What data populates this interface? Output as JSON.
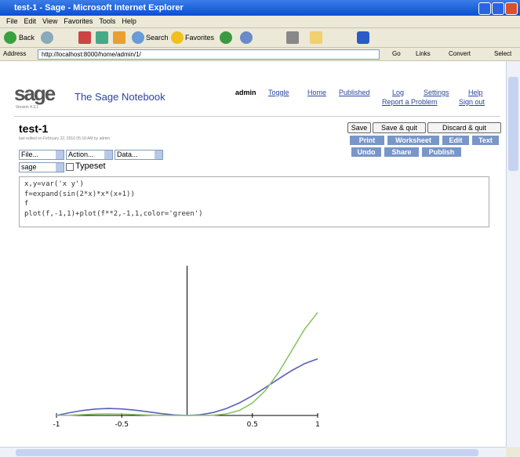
{
  "window": {
    "title": "test-1 - Sage - Microsoft Internet Explorer",
    "menu": [
      "File",
      "Edit",
      "View",
      "Favorites",
      "Tools",
      "Help"
    ],
    "toolbar": [
      "Back",
      "Search",
      "Favorites"
    ],
    "address_label": "Address",
    "address": "http://localhost:8000/home/admin/1/",
    "go": "Go",
    "links": "Links",
    "convert": "Convert",
    "select": "Select"
  },
  "header": {
    "logo": "sage",
    "version": "Version 4.3.1",
    "title": "The Sage Notebook",
    "user": "admin",
    "links": [
      "Toggle",
      "Home",
      "Published",
      "Log",
      "Settings",
      "Help",
      "Report a Problem",
      "Sign out"
    ]
  },
  "worksheet": {
    "name": "test-1",
    "edited": "last edited on February 22, 2010 05:18 AM by admin",
    "buttons": [
      "Save",
      "Save & quit",
      "Discard & quit"
    ],
    "tabs": [
      "Print",
      "Worksheet",
      "Edit",
      "Text",
      "Undo",
      "Share",
      "Publish"
    ],
    "menus": [
      "File...",
      "Action...",
      "Data...",
      "sage"
    ],
    "typeset": "Typeset",
    "code": [
      "x,y=var('x y')",
      "f=expand(sin(2*x)*x*(x+1))",
      "f",
      "plot(f,-1,1)+plot(f**2,-1,1,color='green')"
    ]
  },
  "chart_data": {
    "type": "line",
    "x": [
      -1,
      -0.9,
      -0.8,
      -0.7,
      -0.6,
      -0.5,
      -0.4,
      -0.3,
      -0.2,
      -0.1,
      0,
      0.1,
      0.2,
      0.3,
      0.4,
      0.5,
      0.6,
      0.7,
      0.8,
      0.9,
      1
    ],
    "series": [
      {
        "color": "#5b5fb8",
        "values": [
          0,
          0.0877,
          0.16,
          0.207,
          0.224,
          0.21,
          0.172,
          0.119,
          0.0623,
          0.0179,
          0,
          0.0219,
          0.0934,
          0.22,
          0.402,
          0.631,
          0.895,
          1.173,
          1.439,
          1.665,
          1.819
        ]
      },
      {
        "color": "#8cc46a",
        "values": [
          0,
          0.0077,
          0.0256,
          0.0428,
          0.0502,
          0.0441,
          0.0296,
          0.0142,
          0.0039,
          0.0003,
          0,
          0.0005,
          0.0087,
          0.0484,
          0.1616,
          0.398,
          0.801,
          1.376,
          2.071,
          2.772,
          3.309
        ]
      }
    ],
    "xlim": [
      -1,
      1
    ],
    "ylim": [
      0,
      3.3
    ],
    "xticks": [
      -1,
      -0.5,
      0.5,
      1
    ],
    "yticks": [
      0.5,
      1,
      1.5,
      2,
      2.5,
      3
    ]
  }
}
